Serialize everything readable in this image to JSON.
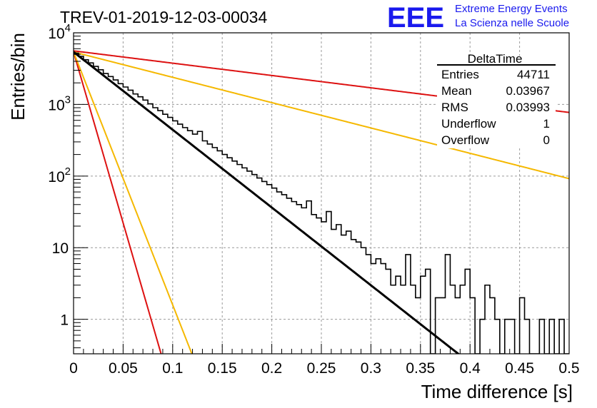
{
  "header": {
    "run_title": "TREV-01-2019-12-03-00034",
    "logo_text": "EEE",
    "logo_line1": "Extreme Energy Events",
    "logo_line2": "La Scienza nelle Scuole"
  },
  "stats_box": {
    "title": "DeltaTime",
    "rows": [
      {
        "label": "Entries",
        "value": "44711"
      },
      {
        "label": "Mean",
        "value": "0.03967"
      },
      {
        "label": "RMS",
        "value": "0.03993"
      },
      {
        "label": "Underflow",
        "value": "1"
      },
      {
        "label": "Overflow",
        "value": "0"
      }
    ]
  },
  "colors": {
    "histogram": "#000000",
    "fit": "#000000",
    "red_curve": "#dd1111",
    "yellow_curve": "#f5b800",
    "grid": "#9a9a9a",
    "logo": "#1a1aee"
  },
  "chart_data": {
    "type": "histogram",
    "xlabel": "Time difference [s]",
    "ylabel": "Entries/bin",
    "xlim": [
      0,
      0.5
    ],
    "ylim": [
      0.33,
      10000
    ],
    "ylog": true,
    "grid": true,
    "x_ticks": [
      "0",
      "0.05",
      "0.1",
      "0.15",
      "0.2",
      "0.25",
      "0.3",
      "0.35",
      "0.4",
      "0.45",
      "0.5"
    ],
    "y_ticks": [
      {
        "value": 1,
        "base": "1",
        "exp": ""
      },
      {
        "value": 10,
        "base": "10",
        "exp": ""
      },
      {
        "value": 100,
        "base": "10",
        "exp": "2"
      },
      {
        "value": 1000,
        "base": "10",
        "exp": "3"
      },
      {
        "value": 10000,
        "base": "10",
        "exp": "4"
      }
    ],
    "bin_width": 0.005,
    "bin_counts": [
      5200,
      4700,
      4200,
      3800,
      3400,
      3050,
      2700,
      2450,
      2200,
      1950,
      1750,
      1580,
      1400,
      1280,
      1150,
      1020,
      900,
      820,
      730,
      660,
      590,
      530,
      475,
      430,
      385,
      420,
      310,
      280,
      250,
      225,
      200,
      180,
      162,
      145,
      130,
      117,
      105,
      94,
      84,
      76,
      68,
      60,
      55,
      49,
      44,
      40,
      36,
      45,
      29,
      26,
      23,
      32,
      18,
      21,
      15,
      17,
      13,
      12,
      10,
      8,
      6,
      7,
      6,
      5,
      3,
      4,
      3,
      8,
      3,
      2,
      4,
      5,
      0.3,
      2,
      2,
      8,
      3,
      2,
      3,
      5,
      2,
      0.3,
      1,
      3,
      2,
      1,
      0.3,
      1,
      1,
      0.3,
      2,
      1,
      0.3,
      0.3,
      1,
      0.3,
      1,
      0.3,
      1,
      0.3
    ],
    "series": [
      {
        "kind": "fit",
        "color": "#000000",
        "y0": 5400,
        "tau": 0.04
      },
      {
        "kind": "red_fast",
        "color": "#dd1111",
        "y0": 5400,
        "tau": 0.0091
      },
      {
        "kind": "yellow_fast",
        "color": "#f5b800",
        "y0": 5400,
        "tau": 0.0123
      },
      {
        "kind": "red_slow",
        "color": "#dd1111",
        "y0": 5600,
        "tau": 0.2525
      },
      {
        "kind": "yellow_slow",
        "color": "#f5b800",
        "y0": 5400,
        "tau": 0.1228
      }
    ]
  }
}
